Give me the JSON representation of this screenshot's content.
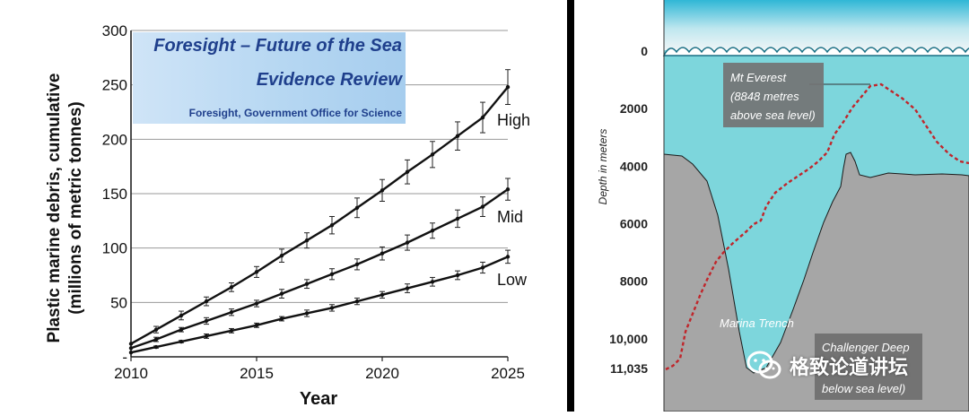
{
  "chart_data": [
    {
      "type": "line",
      "xlabel": "Year",
      "ylabel_line1": "Plastic marine debris, cumulative",
      "ylabel_line2": "(millions of metric tonnes)",
      "xlim": [
        2010,
        2025
      ],
      "ylim": [
        0,
        300
      ],
      "x_ticks": [
        2010,
        2015,
        2020,
        2025
      ],
      "y_ticks": [
        0,
        50,
        100,
        150,
        200,
        250,
        300
      ],
      "y_tick_labels": [
        "-",
        "50",
        "100",
        "150",
        "200",
        "250",
        "300"
      ],
      "grid": "horizontal lines at y ticks",
      "x": [
        2010,
        2011,
        2012,
        2013,
        2014,
        2015,
        2016,
        2017,
        2018,
        2019,
        2020,
        2021,
        2022,
        2023,
        2024,
        2025
      ],
      "series": [
        {
          "name": "High",
          "values": [
            12,
            25,
            38,
            51,
            64,
            78,
            93,
            107,
            121,
            137,
            153,
            170,
            186,
            203,
            220,
            248
          ],
          "errors": [
            0,
            3,
            4,
            4,
            4,
            5,
            6,
            7,
            8,
            9,
            10,
            11,
            12,
            13,
            14,
            16
          ]
        },
        {
          "name": "Mid",
          "values": [
            8,
            16,
            25,
            33,
            41,
            49,
            58,
            67,
            76,
            85,
            95,
            105,
            116,
            127,
            138,
            154
          ],
          "errors": [
            0,
            2,
            2,
            3,
            3,
            3,
            4,
            4,
            5,
            5,
            6,
            7,
            7,
            8,
            9,
            10
          ]
        },
        {
          "name": "Low",
          "values": [
            4,
            9,
            14,
            19,
            24,
            29,
            35,
            40,
            45,
            51,
            57,
            63,
            69,
            75,
            82,
            92
          ],
          "errors": [
            0,
            1,
            1,
            2,
            2,
            2,
            2,
            3,
            3,
            3,
            3,
            4,
            4,
            4,
            5,
            6
          ]
        }
      ],
      "banner": {
        "line1": "Foresight – Future of the Sea",
        "line2": "Evidence Review",
        "line3": "Foresight, Government Office for Science"
      }
    },
    {
      "type": "diagram",
      "ylabel": "Depth in meters",
      "depth_labels": [
        "0",
        "2000",
        "4000",
        "6000",
        "8000",
        "10,000",
        "11,035"
      ],
      "depth_values": [
        0,
        2000,
        4000,
        6000,
        8000,
        10000,
        11035
      ],
      "annotations": {
        "everest": [
          "Mt Everest",
          "(8848 metres",
          "above sea level)"
        ],
        "trench": "Marina Trench",
        "challenger": [
          "Challenger Deep",
          "",
          "below sea level)"
        ]
      },
      "colors": {
        "sea": "#7dd6dc",
        "seabed": "#a6a6a6",
        "everest_line": "#c0262b"
      }
    }
  ],
  "watermark": "格致论道讲坛"
}
